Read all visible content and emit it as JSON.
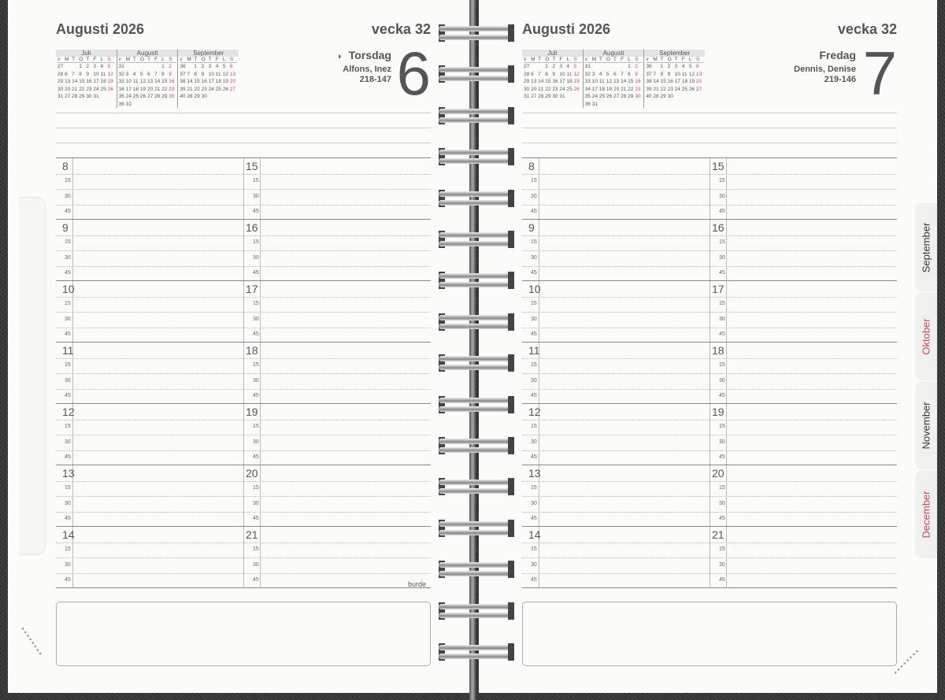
{
  "pages": [
    {
      "title": "Augusti 2026",
      "week": "vecka 32",
      "weekday": "Torsdag",
      "moon_icon": "half-moon-icon",
      "names": "Alfons, Inez",
      "daycount": "218-147",
      "day": "6"
    },
    {
      "title": "Augusti 2026",
      "week": "vecka 32",
      "weekday": "Fredag",
      "names": "Dennis, Denise",
      "daycount": "219-146",
      "day": "7"
    }
  ],
  "mini_calendar": [
    {
      "month": "Juli",
      "head": [
        "v",
        "M",
        "T",
        "O",
        "T",
        "F",
        "L",
        "S"
      ],
      "rows": [
        [
          "27",
          "",
          "",
          "1",
          "2",
          "3",
          "4",
          "5"
        ],
        [
          "28",
          "6",
          "7",
          "8",
          "9",
          "10",
          "11",
          "12"
        ],
        [
          "29",
          "13",
          "14",
          "15",
          "16",
          "17",
          "18",
          "19"
        ],
        [
          "30",
          "20",
          "21",
          "22",
          "23",
          "24",
          "25",
          "26"
        ],
        [
          "31",
          "27",
          "28",
          "29",
          "30",
          "31",
          "",
          ""
        ]
      ]
    },
    {
      "month": "Augusti",
      "head": [
        "v",
        "M",
        "T",
        "O",
        "T",
        "F",
        "L",
        "S"
      ],
      "rows": [
        [
          "31",
          "",
          "",
          "",
          "",
          "",
          "1",
          "2"
        ],
        [
          "32",
          "3",
          "4",
          "5",
          "6",
          "7",
          "8",
          "9"
        ],
        [
          "33",
          "10",
          "11",
          "12",
          "13",
          "14",
          "15",
          "16"
        ],
        [
          "34",
          "17",
          "18",
          "19",
          "20",
          "21",
          "22",
          "23"
        ],
        [
          "35",
          "24",
          "25",
          "26",
          "27",
          "28",
          "29",
          "30"
        ],
        [
          "36",
          "31",
          "",
          "",
          "",
          "",
          "",
          ""
        ]
      ]
    },
    {
      "month": "September",
      "head": [
        "v",
        "M",
        "T",
        "O",
        "T",
        "F",
        "L",
        "S"
      ],
      "rows": [
        [
          "36",
          "",
          "1",
          "2",
          "3",
          "4",
          "5",
          "6"
        ],
        [
          "37",
          "7",
          "8",
          "9",
          "10",
          "11",
          "12",
          "13"
        ],
        [
          "38",
          "14",
          "15",
          "16",
          "17",
          "18",
          "19",
          "20"
        ],
        [
          "39",
          "21",
          "22",
          "23",
          "24",
          "25",
          "26",
          "27"
        ],
        [
          "40",
          "28",
          "29",
          "30",
          "",
          "",
          "",
          ""
        ]
      ]
    }
  ],
  "hours_left": [
    "8",
    "9",
    "10",
    "11",
    "12",
    "13",
    "14"
  ],
  "hours_right": [
    "15",
    "16",
    "17",
    "18",
    "19",
    "20",
    "21"
  ],
  "quarters": [
    "15",
    "30",
    "45"
  ],
  "brand": "burde",
  "tabs": [
    {
      "label": "September",
      "color": "#333333"
    },
    {
      "label": "Oktober",
      "color": "#c8475b"
    },
    {
      "label": "November",
      "color": "#333333"
    },
    {
      "label": "December",
      "color": "#c8475b"
    }
  ],
  "accent_red": "#c8475b"
}
